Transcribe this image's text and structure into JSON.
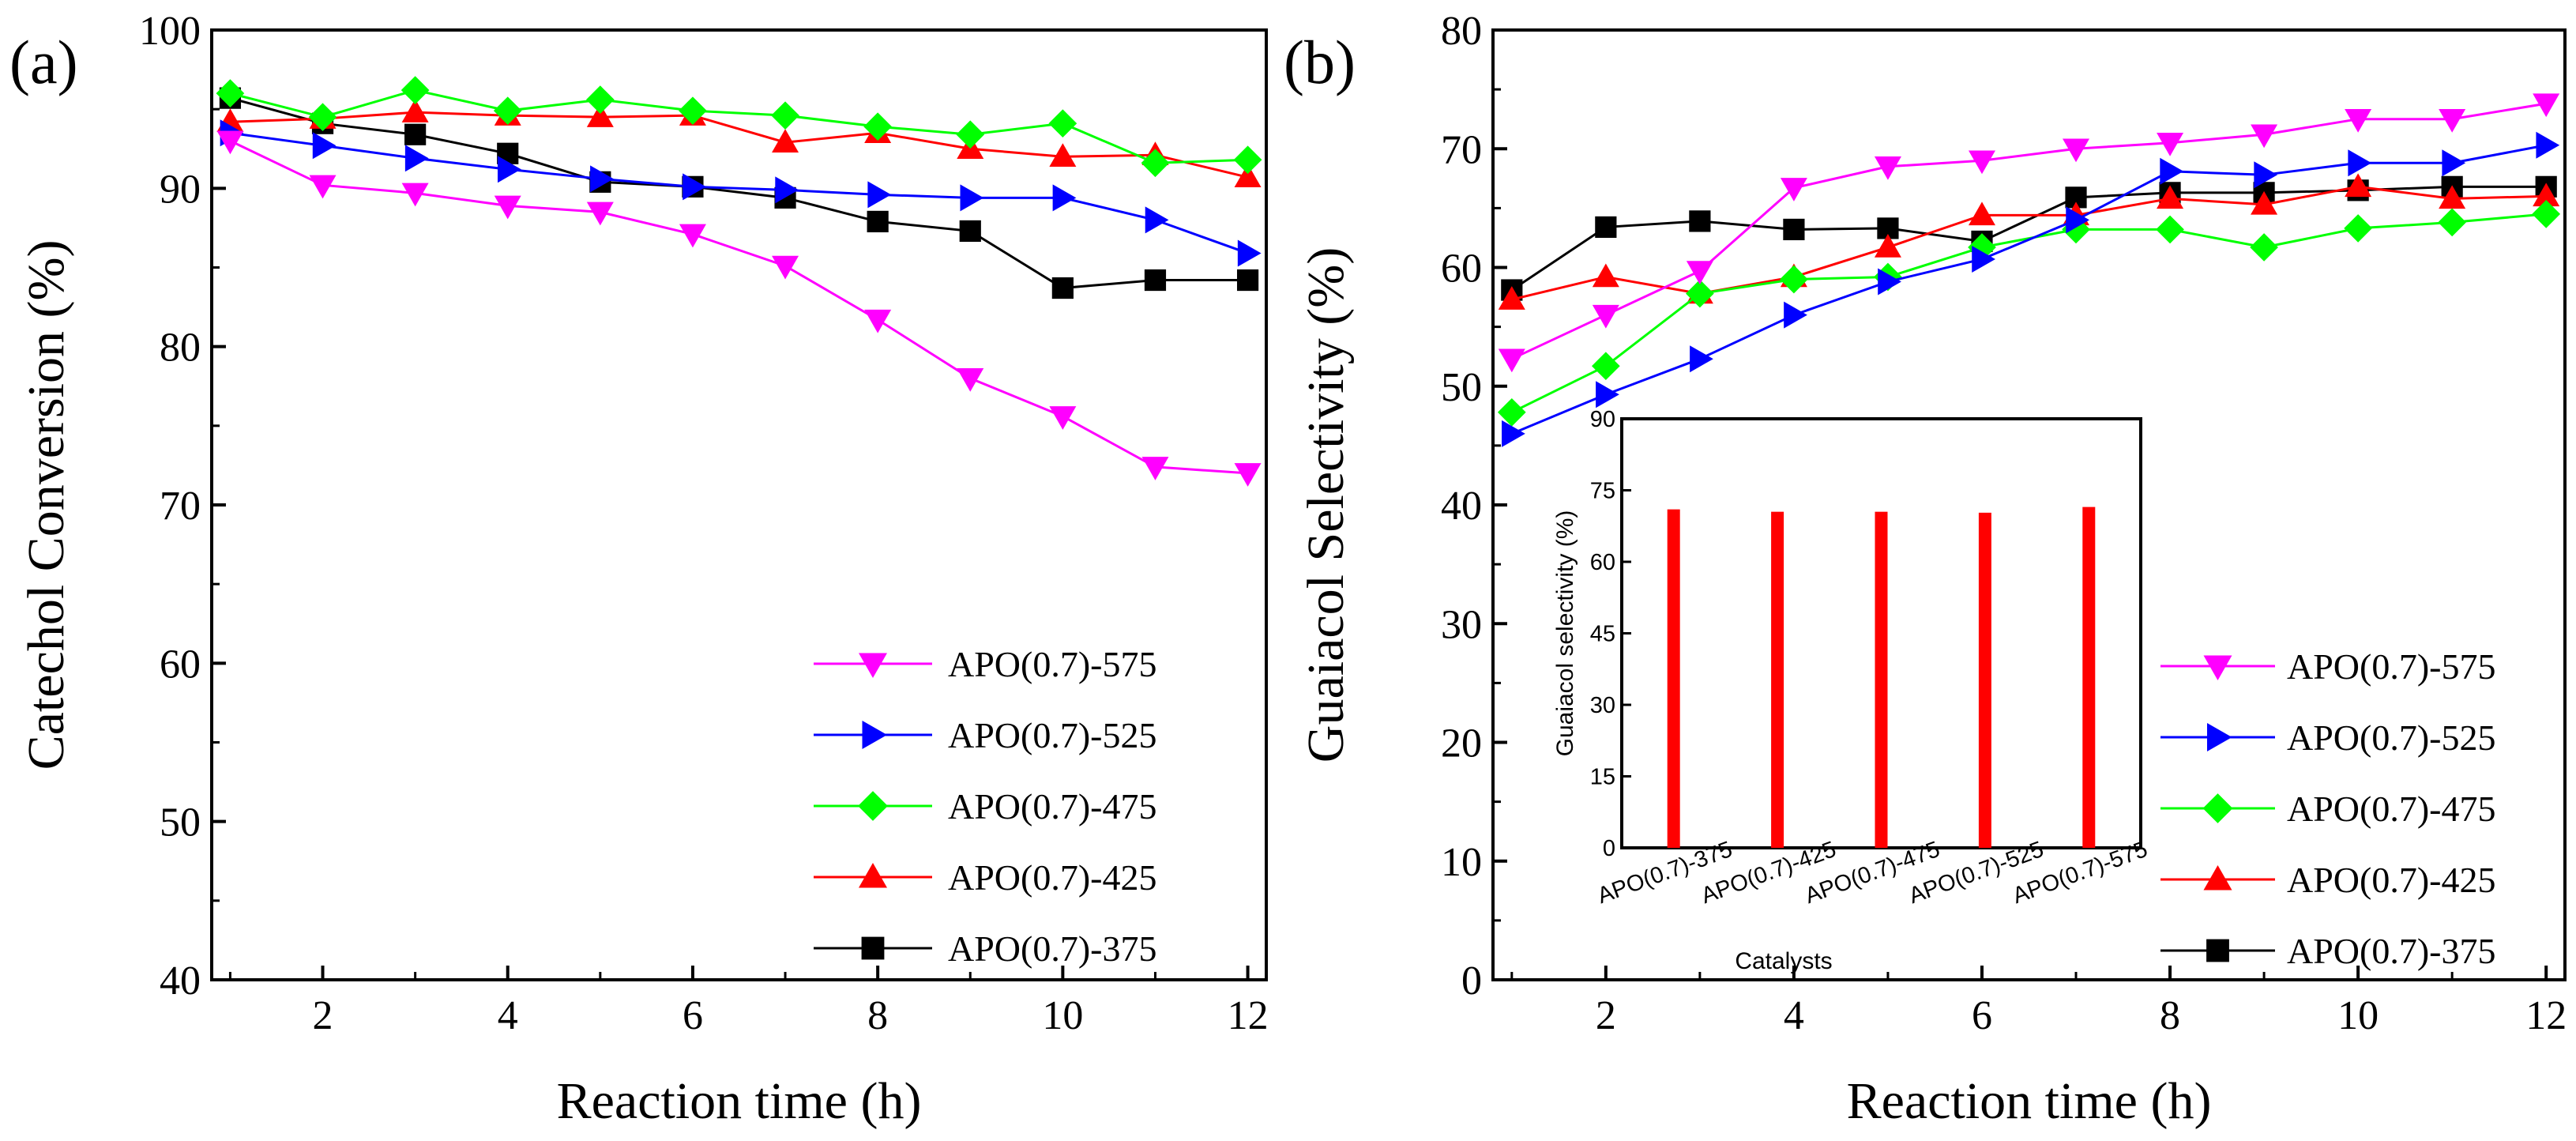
{
  "chart_data": [
    {
      "type": "line",
      "panel_label": "(a)",
      "xlabel": "Reaction time (h)",
      "ylabel": "Catechol Conversion (%)",
      "xlim": [
        0.8,
        12.2
      ],
      "ylim": [
        40,
        100
      ],
      "xticks": [
        2,
        4,
        6,
        8,
        10,
        12
      ],
      "yticks": [
        40,
        50,
        60,
        70,
        80,
        90,
        100
      ],
      "legend_position": "lower-right",
      "x": [
        1,
        2,
        3,
        4,
        5,
        6,
        7,
        8,
        9,
        10,
        11,
        12
      ],
      "series": [
        {
          "name": "APO(0.7)-575",
          "color": "#ff00ff",
          "marker": "triangle-down",
          "values": [
            93.0,
            90.2,
            89.7,
            88.9,
            88.5,
            87.1,
            85.1,
            81.7,
            78.0,
            75.6,
            72.4,
            72.0
          ]
        },
        {
          "name": "APO(0.7)-525",
          "color": "#0000ff",
          "marker": "triangle-right",
          "values": [
            93.5,
            92.7,
            91.9,
            91.2,
            90.6,
            90.1,
            89.9,
            89.6,
            89.4,
            89.4,
            88.0,
            85.9
          ]
        },
        {
          "name": "APO(0.7)-475",
          "color": "#00ff00",
          "marker": "diamond",
          "values": [
            96.0,
            94.5,
            96.2,
            94.9,
            95.6,
            94.9,
            94.6,
            93.9,
            93.4,
            94.1,
            91.6,
            91.8
          ]
        },
        {
          "name": "APO(0.7)-425",
          "color": "#ff0000",
          "marker": "triangle-up",
          "values": [
            94.2,
            94.4,
            94.8,
            94.6,
            94.5,
            94.6,
            92.9,
            93.5,
            92.5,
            92.0,
            92.1,
            90.7
          ]
        },
        {
          "name": "APO(0.7)-375",
          "color": "#000000",
          "marker": "square",
          "values": [
            95.7,
            94.1,
            93.4,
            92.2,
            90.4,
            90.1,
            89.4,
            87.9,
            87.3,
            83.7,
            84.2,
            84.2
          ]
        }
      ]
    },
    {
      "type": "line",
      "panel_label": "(b)",
      "xlabel": "Reaction time (h)",
      "ylabel": "Guaiacol Selectivity (%)",
      "xlim": [
        0.8,
        12.2
      ],
      "ylim": [
        0,
        80
      ],
      "xticks": [
        2,
        4,
        6,
        8,
        10,
        12
      ],
      "yticks": [
        0,
        10,
        20,
        30,
        40,
        50,
        60,
        70,
        80
      ],
      "legend_position": "lower-right",
      "x": [
        1,
        2,
        3,
        4,
        5,
        6,
        7,
        8,
        9,
        10,
        11,
        12
      ],
      "series": [
        {
          "name": "APO(0.7)-575",
          "color": "#ff00ff",
          "marker": "triangle-down",
          "values": [
            52.3,
            56.0,
            59.7,
            66.7,
            68.5,
            69.0,
            70.0,
            70.5,
            71.2,
            72.5,
            72.5,
            73.8
          ]
        },
        {
          "name": "APO(0.7)-525",
          "color": "#0000ff",
          "marker": "triangle-right",
          "values": [
            46.0,
            49.3,
            52.3,
            56.0,
            58.8,
            60.7,
            64.0,
            68.1,
            67.8,
            68.8,
            68.8,
            70.3
          ]
        },
        {
          "name": "APO(0.7)-475",
          "color": "#00ff00",
          "marker": "diamond",
          "values": [
            47.8,
            51.7,
            57.8,
            59.0,
            59.2,
            61.7,
            63.2,
            63.2,
            61.7,
            63.3,
            63.8,
            64.5
          ]
        },
        {
          "name": "APO(0.7)-425",
          "color": "#ff0000",
          "marker": "triangle-up",
          "values": [
            57.3,
            59.2,
            57.8,
            59.2,
            61.7,
            64.4,
            64.4,
            65.8,
            65.3,
            66.8,
            65.8,
            66.0
          ]
        },
        {
          "name": "APO(0.7)-375",
          "color": "#000000",
          "marker": "square",
          "values": [
            58.1,
            63.4,
            63.9,
            63.2,
            63.3,
            62.2,
            65.9,
            66.3,
            66.3,
            66.5,
            66.8,
            66.8
          ]
        }
      ],
      "inset": {
        "type": "bar",
        "xlabel": "Catalysts",
        "ylabel": "Guaiacol selectivity (%)",
        "ylim": [
          0,
          90
        ],
        "yticks": [
          0,
          15,
          30,
          45,
          60,
          75,
          90
        ],
        "categories": [
          "APO(0.7)-375",
          "APO(0.7)-425",
          "APO(0.7)-475",
          "APO(0.7)-525",
          "APO(0.7)-575"
        ],
        "values": [
          71.0,
          70.5,
          70.5,
          70.3,
          71.5
        ],
        "color": "#ff0000"
      }
    }
  ]
}
